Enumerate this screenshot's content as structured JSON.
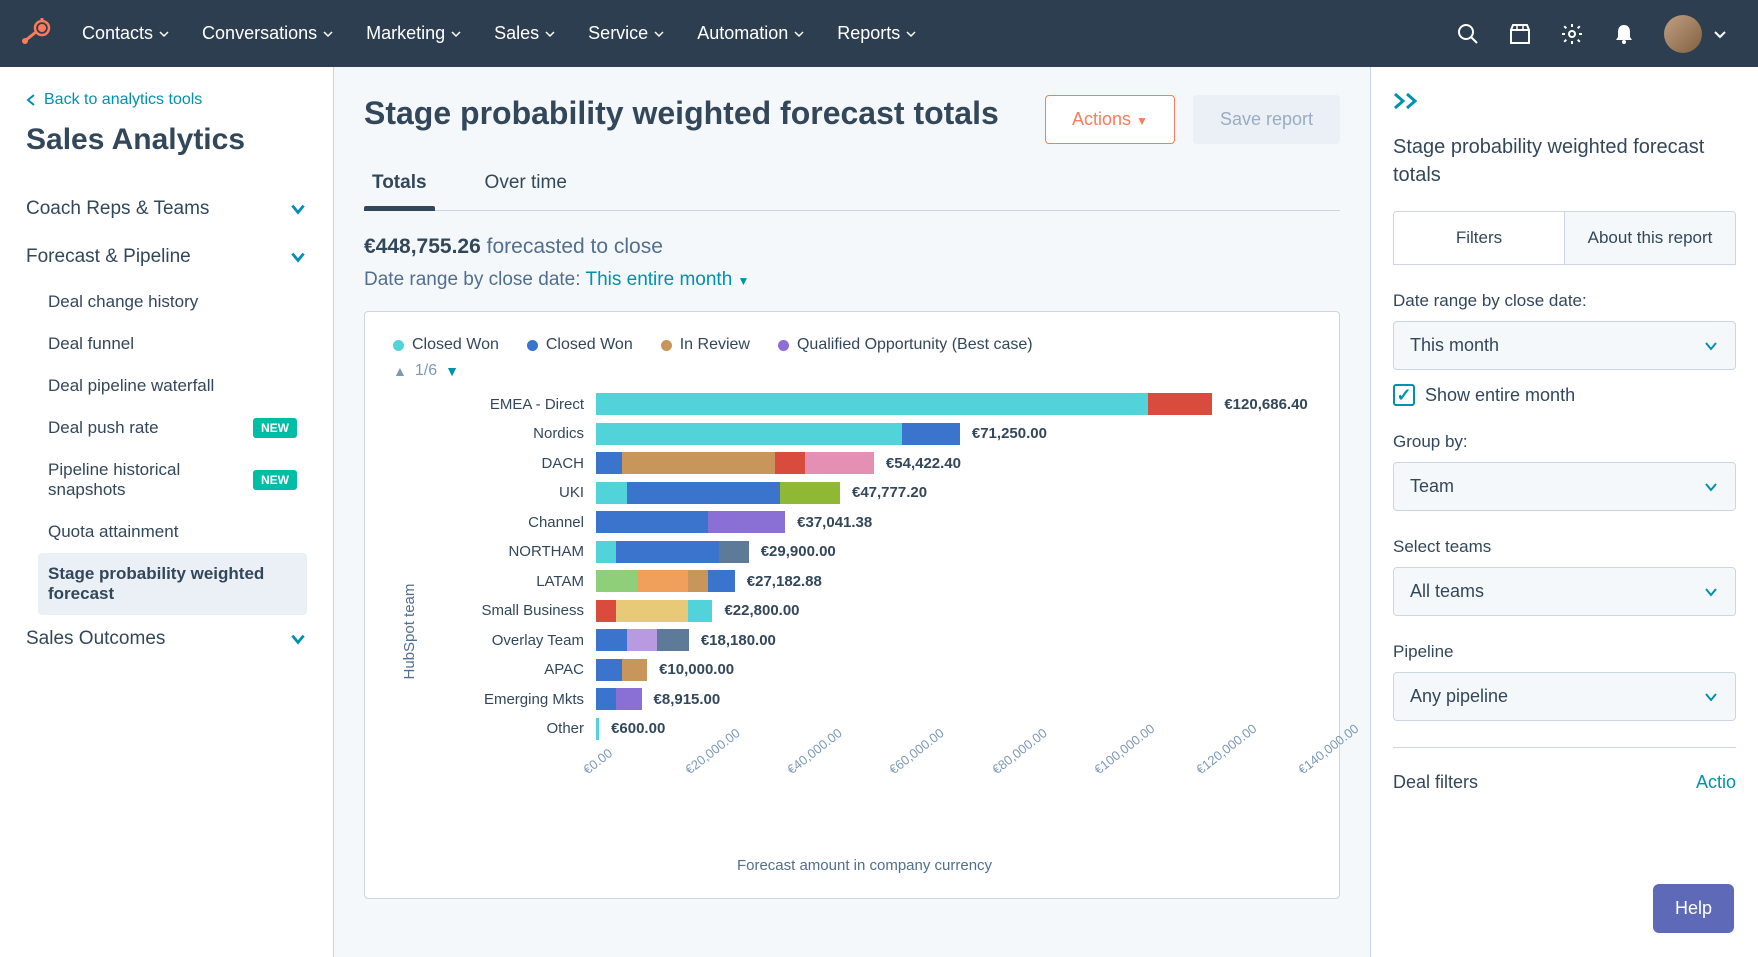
{
  "nav": {
    "items": [
      "Contacts",
      "Conversations",
      "Marketing",
      "Sales",
      "Service",
      "Automation",
      "Reports"
    ]
  },
  "sidebar": {
    "back": "Back to analytics tools",
    "title": "Sales Analytics",
    "sections": [
      {
        "title": "Coach Reps & Teams",
        "items": []
      },
      {
        "title": "Forecast & Pipeline",
        "items": [
          {
            "label": "Deal change history"
          },
          {
            "label": "Deal funnel"
          },
          {
            "label": "Deal pipeline waterfall"
          },
          {
            "label": "Deal push rate",
            "badge": "NEW"
          },
          {
            "label": "Pipeline historical snapshots",
            "badge": "NEW"
          },
          {
            "label": "Quota attainment"
          },
          {
            "label": "Stage probability weighted forecast",
            "active": true
          }
        ]
      },
      {
        "title": "Sales Outcomes",
        "items": []
      }
    ]
  },
  "main": {
    "title": "Stage probability weighted forecast totals",
    "actions_btn": "Actions",
    "save_btn": "Save report",
    "tabs": [
      "Totals",
      "Over time"
    ],
    "active_tab": 0,
    "forecast_amount": "€448,755.26",
    "forecast_text": "forecasted to close",
    "date_label": "Date range by close date:",
    "date_value": "This entire month"
  },
  "chart": {
    "type": "stacked_bar_horizontal",
    "legend": [
      {
        "label": "Closed Won",
        "color": "#51d3d9"
      },
      {
        "label": "Closed Won",
        "color": "#3a74cc"
      },
      {
        "label": "In Review",
        "color": "#c8965a"
      },
      {
        "label": "Qualified Opportunity (Best case)",
        "color": "#8a6fd4"
      }
    ],
    "pager": "1/6",
    "y_axis_label": "HubSpot team",
    "x_axis_label": "Forecast amount in company currency",
    "x_max": 140000,
    "x_ticks": [
      "€0.00",
      "€20,000.00",
      "€40,000.00",
      "€60,000.00",
      "€80,000.00",
      "€100,000.00",
      "€120,000.00",
      "€140,000.00"
    ],
    "rows": [
      {
        "label": "EMEA - Direct",
        "total": "€120,686.40",
        "segs": [
          {
            "c": "#51d3d9",
            "v": 108000
          },
          {
            "c": "#d94c3d",
            "v": 12686
          }
        ]
      },
      {
        "label": "Nordics",
        "total": "€71,250.00",
        "segs": [
          {
            "c": "#51d3d9",
            "v": 60000
          },
          {
            "c": "#3a74cc",
            "v": 11250
          }
        ]
      },
      {
        "label": "DACH",
        "total": "€54,422.40",
        "segs": [
          {
            "c": "#3a74cc",
            "v": 5000
          },
          {
            "c": "#c8965a",
            "v": 30000
          },
          {
            "c": "#d94c3d",
            "v": 6000
          },
          {
            "c": "#e68fb4",
            "v": 13422
          }
        ]
      },
      {
        "label": "UKI",
        "total": "€47,777.20",
        "segs": [
          {
            "c": "#51d3d9",
            "v": 6000
          },
          {
            "c": "#3a74cc",
            "v": 30000
          },
          {
            "c": "#8fb935",
            "v": 11777
          }
        ]
      },
      {
        "label": "Channel",
        "total": "€37,041.38",
        "segs": [
          {
            "c": "#3a74cc",
            "v": 22000
          },
          {
            "c": "#8a6fd4",
            "v": 15041
          }
        ]
      },
      {
        "label": "NORTHAM",
        "total": "€29,900.00",
        "segs": [
          {
            "c": "#51d3d9",
            "v": 4000
          },
          {
            "c": "#3a74cc",
            "v": 20000
          },
          {
            "c": "#5d7a99",
            "v": 5900
          }
        ]
      },
      {
        "label": "LATAM",
        "total": "€27,182.88",
        "segs": [
          {
            "c": "#8fcf7a",
            "v": 8000
          },
          {
            "c": "#f0a05a",
            "v": 10000
          },
          {
            "c": "#c8965a",
            "v": 4000
          },
          {
            "c": "#3a74cc",
            "v": 5182
          }
        ]
      },
      {
        "label": "Small Business",
        "total": "€22,800.00",
        "segs": [
          {
            "c": "#d94c3d",
            "v": 4000
          },
          {
            "c": "#e8c978",
            "v": 14000
          },
          {
            "c": "#51d3d9",
            "v": 4800
          }
        ]
      },
      {
        "label": "Overlay Team",
        "total": "€18,180.00",
        "segs": [
          {
            "c": "#3a74cc",
            "v": 6000
          },
          {
            "c": "#b89ae0",
            "v": 6000
          },
          {
            "c": "#5d7a99",
            "v": 6180
          }
        ]
      },
      {
        "label": "APAC",
        "total": "€10,000.00",
        "segs": [
          {
            "c": "#3a74cc",
            "v": 5000
          },
          {
            "c": "#c8965a",
            "v": 5000
          }
        ]
      },
      {
        "label": "Emerging Mkts",
        "total": "€8,915.00",
        "segs": [
          {
            "c": "#3a74cc",
            "v": 4000
          },
          {
            "c": "#8a6fd4",
            "v": 4915
          }
        ]
      },
      {
        "label": "Other",
        "total": "€600.00",
        "segs": [
          {
            "c": "#51d3d9",
            "v": 600
          }
        ]
      }
    ]
  },
  "panel": {
    "title": "Stage probability weighted forecast totals",
    "tabs": [
      "Filters",
      "About this report"
    ],
    "filters": {
      "date_label": "Date range by close date:",
      "date_value": "This month",
      "show_entire": "Show entire month",
      "group_label": "Group by:",
      "group_value": "Team",
      "teams_label": "Select teams",
      "teams_value": "All teams",
      "pipeline_label": "Pipeline",
      "pipeline_value": "Any pipeline",
      "deal_filters": "Deal filters",
      "deal_action": "Actio"
    }
  },
  "help": "Help"
}
